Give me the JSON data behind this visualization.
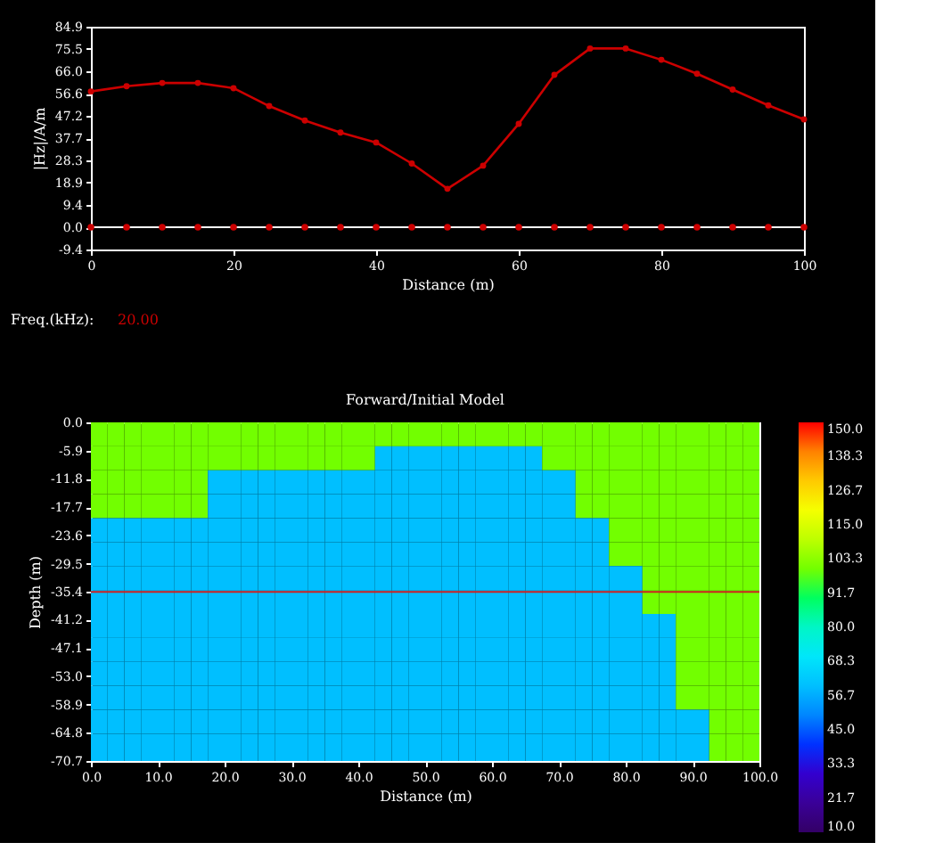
{
  "chart_data": [
    {
      "type": "line",
      "xlabel": "Distance (m)",
      "ylabel": "|Hz|/A/m",
      "x": [
        0,
        5,
        10,
        15,
        20,
        25,
        30,
        35,
        40,
        45,
        50,
        55,
        60,
        65,
        70,
        75,
        80,
        85,
        90,
        95,
        100
      ],
      "series": [
        {
          "type": "line",
          "color": "#cc0000",
          "marker": "circle",
          "values": [
            57.5,
            59.7,
            61.1,
            61.1,
            58.9,
            51.3,
            45.2,
            40.1,
            35.9,
            27,
            16.3,
            26.1,
            43.8,
            64.5,
            75.7,
            75.7,
            70.9,
            65,
            58.3,
            51.6,
            45.7
          ]
        },
        {
          "type": "scatter",
          "color": "#cc0000",
          "marker": "circle",
          "values": [
            0,
            0,
            0,
            0,
            0,
            0,
            0,
            0,
            0,
            0,
            0,
            0,
            0,
            0,
            0,
            0,
            0,
            0,
            0,
            0,
            0
          ]
        }
      ],
      "xlim": [
        0,
        100
      ],
      "xticks": [
        0,
        20,
        40,
        60,
        80,
        100
      ],
      "ylim": [
        -9.4,
        84.9
      ],
      "yticks": [
        -9.4,
        {
          "value": 0,
          "label": "0.0"
        },
        9.4,
        18.9,
        28.3,
        37.7,
        47.2,
        56.6,
        {
          "value": 66,
          "label": "66.0"
        },
        75.5,
        84.9
      ],
      "ref_lines": [
        {
          "axis": "y",
          "value": 0,
          "color": "#ffffff"
        }
      ],
      "annotations": [
        "Freq.(kHz):",
        "20.00"
      ]
    },
    {
      "type": "heatmap",
      "title": "Forward/Initial Model",
      "xlabel": "Distance (m)",
      "ylabel": "Depth (m)",
      "x": [
        1.25,
        3.75,
        6.25,
        8.75,
        11.25,
        13.75,
        16.25,
        18.75,
        21.25,
        23.75,
        26.25,
        28.75,
        31.25,
        33.75,
        36.25,
        38.75,
        41.25,
        43.75,
        46.25,
        48.75,
        51.25,
        53.75,
        56.25,
        58.75,
        61.25,
        63.75,
        66.25,
        68.75,
        71.25,
        73.75,
        76.25,
        78.75,
        81.25,
        83.75,
        86.25,
        88.75,
        91.25,
        93.75,
        96.25,
        98.75
      ],
      "y": [
        -2.5,
        -7.5,
        -12.5,
        -17.5,
        -22.5,
        -27.5,
        -32.5,
        -37.5,
        -42.5,
        -47.5,
        -52.5,
        -57.5,
        -62.5,
        -67.5
      ],
      "cells": [
        [
          100,
          100,
          100,
          100,
          100,
          100,
          100,
          100,
          100,
          100,
          100,
          100,
          100,
          100,
          100,
          100,
          100,
          100,
          100,
          100,
          100,
          100,
          100,
          100,
          100,
          100,
          100,
          100,
          100,
          100,
          100,
          100,
          100,
          100,
          100,
          100,
          100,
          100,
          100,
          100
        ],
        [
          100,
          100,
          100,
          100,
          100,
          100,
          100,
          100,
          100,
          100,
          100,
          100,
          100,
          100,
          100,
          100,
          100,
          60,
          60,
          60,
          60,
          60,
          60,
          60,
          60,
          60,
          60,
          100,
          100,
          100,
          100,
          100,
          100,
          100,
          100,
          100,
          100,
          100,
          100,
          100
        ],
        [
          100,
          100,
          100,
          100,
          100,
          100,
          100,
          60,
          60,
          60,
          60,
          60,
          60,
          60,
          60,
          60,
          60,
          60,
          60,
          60,
          60,
          60,
          60,
          60,
          60,
          60,
          60,
          60,
          60,
          100,
          100,
          100,
          100,
          100,
          100,
          100,
          100,
          100,
          100,
          100
        ],
        [
          100,
          100,
          100,
          100,
          100,
          100,
          100,
          60,
          60,
          60,
          60,
          60,
          60,
          60,
          60,
          60,
          60,
          60,
          60,
          60,
          60,
          60,
          60,
          60,
          60,
          60,
          60,
          60,
          60,
          100,
          100,
          100,
          100,
          100,
          100,
          100,
          100,
          100,
          100,
          100
        ],
        [
          60,
          60,
          60,
          60,
          60,
          60,
          60,
          60,
          60,
          60,
          60,
          60,
          60,
          60,
          60,
          60,
          60,
          60,
          60,
          60,
          60,
          60,
          60,
          60,
          60,
          60,
          60,
          60,
          60,
          60,
          60,
          100,
          100,
          100,
          100,
          100,
          100,
          100,
          100,
          100
        ],
        [
          60,
          60,
          60,
          60,
          60,
          60,
          60,
          60,
          60,
          60,
          60,
          60,
          60,
          60,
          60,
          60,
          60,
          60,
          60,
          60,
          60,
          60,
          60,
          60,
          60,
          60,
          60,
          60,
          60,
          60,
          60,
          100,
          100,
          100,
          100,
          100,
          100,
          100,
          100,
          100
        ],
        [
          60,
          60,
          60,
          60,
          60,
          60,
          60,
          60,
          60,
          60,
          60,
          60,
          60,
          60,
          60,
          60,
          60,
          60,
          60,
          60,
          60,
          60,
          60,
          60,
          60,
          60,
          60,
          60,
          60,
          60,
          60,
          60,
          60,
          100,
          100,
          100,
          100,
          100,
          100,
          100
        ],
        [
          60,
          60,
          60,
          60,
          60,
          60,
          60,
          60,
          60,
          60,
          60,
          60,
          60,
          60,
          60,
          60,
          60,
          60,
          60,
          60,
          60,
          60,
          60,
          60,
          60,
          60,
          60,
          60,
          60,
          60,
          60,
          60,
          60,
          100,
          100,
          100,
          100,
          100,
          100,
          100
        ],
        [
          60,
          60,
          60,
          60,
          60,
          60,
          60,
          60,
          60,
          60,
          60,
          60,
          60,
          60,
          60,
          60,
          60,
          60,
          60,
          60,
          60,
          60,
          60,
          60,
          60,
          60,
          60,
          60,
          60,
          60,
          60,
          60,
          60,
          60,
          60,
          100,
          100,
          100,
          100,
          100
        ],
        [
          60,
          60,
          60,
          60,
          60,
          60,
          60,
          60,
          60,
          60,
          60,
          60,
          60,
          60,
          60,
          60,
          60,
          60,
          60,
          60,
          60,
          60,
          60,
          60,
          60,
          60,
          60,
          60,
          60,
          60,
          60,
          60,
          60,
          60,
          60,
          100,
          100,
          100,
          100,
          100
        ],
        [
          60,
          60,
          60,
          60,
          60,
          60,
          60,
          60,
          60,
          60,
          60,
          60,
          60,
          60,
          60,
          60,
          60,
          60,
          60,
          60,
          60,
          60,
          60,
          60,
          60,
          60,
          60,
          60,
          60,
          60,
          60,
          60,
          60,
          60,
          60,
          100,
          100,
          100,
          100,
          100
        ],
        [
          60,
          60,
          60,
          60,
          60,
          60,
          60,
          60,
          60,
          60,
          60,
          60,
          60,
          60,
          60,
          60,
          60,
          60,
          60,
          60,
          60,
          60,
          60,
          60,
          60,
          60,
          60,
          60,
          60,
          60,
          60,
          60,
          60,
          60,
          60,
          100,
          100,
          100,
          100,
          100
        ],
        [
          60,
          60,
          60,
          60,
          60,
          60,
          60,
          60,
          60,
          60,
          60,
          60,
          60,
          60,
          60,
          60,
          60,
          60,
          60,
          60,
          60,
          60,
          60,
          60,
          60,
          60,
          60,
          60,
          60,
          60,
          60,
          60,
          60,
          60,
          60,
          60,
          60,
          100,
          100,
          100
        ],
        [
          60,
          60,
          60,
          60,
          60,
          60,
          60,
          60,
          60,
          60,
          60,
          60,
          60,
          60,
          60,
          60,
          60,
          60,
          60,
          60,
          60,
          60,
          60,
          60,
          60,
          60,
          60,
          60,
          60,
          60,
          60,
          60,
          60,
          60,
          60,
          60,
          60,
          100,
          100,
          100
        ]
      ],
      "xlim": [
        0,
        100
      ],
      "xticks": [
        {
          "value": 0,
          "label": "0.0"
        },
        {
          "value": 10,
          "label": "10.0"
        },
        {
          "value": 20,
          "label": "20.0"
        },
        {
          "value": 30,
          "label": "30.0"
        },
        {
          "value": 40,
          "label": "40.0"
        },
        {
          "value": 50,
          "label": "50.0"
        },
        {
          "value": 60,
          "label": "60.0"
        },
        {
          "value": 70,
          "label": "70.0"
        },
        {
          "value": 80,
          "label": "80.0"
        },
        {
          "value": 90,
          "label": "90.0"
        },
        {
          "value": 100,
          "label": "100.0"
        }
      ],
      "ylim": [
        -70.7,
        0
      ],
      "yticks": [
        {
          "value": 0,
          "label": "0.0"
        },
        -5.9,
        -11.8,
        -17.7,
        -23.6,
        -29.5,
        -35.4,
        -41.2,
        -47.1,
        {
          "value": -53,
          "label": "-53.0"
        },
        -58.9,
        -64.8,
        -70.7
      ],
      "clim": [
        10,
        150
      ],
      "cticks": [
        {
          "value": 10,
          "label": "10.0"
        },
        21.7,
        33.3,
        {
          "value": 45,
          "label": "45.0"
        },
        56.7,
        68.3,
        {
          "value": 80,
          "label": "80.0"
        },
        91.7,
        103.3,
        {
          "value": 115,
          "label": "115.0"
        },
        126.7,
        138.3,
        {
          "value": 150,
          "label": "150.0"
        }
      ],
      "ref_lines": [
        {
          "axis": "y",
          "value": -35.4,
          "color": "#cc2222"
        }
      ]
    }
  ]
}
